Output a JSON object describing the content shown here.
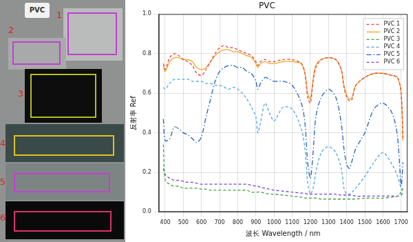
{
  "chart_data": {
    "type": "line",
    "title": "PVC",
    "x_label": "波长 Wavelength / nm",
    "y_label": "反射率 Ref",
    "x": [
      390,
      400,
      425,
      450,
      475,
      500,
      525,
      550,
      575,
      600,
      625,
      650,
      675,
      700,
      725,
      750,
      775,
      800,
      825,
      850,
      875,
      900,
      910,
      925,
      950,
      975,
      1000,
      1050,
      1100,
      1150,
      1170,
      1185,
      1200,
      1215,
      1230,
      1260,
      1300,
      1340,
      1370,
      1385,
      1400,
      1415,
      1430,
      1450,
      1500,
      1550,
      1600,
      1650,
      1680,
      1700,
      1710
    ],
    "series": [
      {
        "name": "PVC 1",
        "color": "#e8413c",
        "line_style": "dashed",
        "values": [
          0.75,
          0.72,
          0.78,
          0.8,
          0.79,
          0.77,
          0.76,
          0.74,
          0.7,
          0.69,
          0.72,
          0.76,
          0.8,
          0.83,
          0.84,
          0.83,
          0.83,
          0.82,
          0.81,
          0.8,
          0.79,
          0.76,
          0.74,
          0.76,
          0.77,
          0.76,
          0.76,
          0.77,
          0.77,
          0.75,
          0.7,
          0.58,
          0.55,
          0.66,
          0.73,
          0.77,
          0.78,
          0.77,
          0.72,
          0.63,
          0.58,
          0.56,
          0.57,
          0.64,
          0.68,
          0.7,
          0.7,
          0.69,
          0.68,
          0.6,
          0.37
        ]
      },
      {
        "name": "PVC 2",
        "color": "#f5a623",
        "line_style": "solid",
        "values": [
          0.74,
          0.71,
          0.76,
          0.78,
          0.78,
          0.77,
          0.77,
          0.76,
          0.73,
          0.72,
          0.73,
          0.76,
          0.79,
          0.81,
          0.82,
          0.82,
          0.81,
          0.81,
          0.8,
          0.79,
          0.78,
          0.75,
          0.73,
          0.75,
          0.76,
          0.75,
          0.75,
          0.76,
          0.76,
          0.75,
          0.7,
          0.6,
          0.57,
          0.67,
          0.74,
          0.77,
          0.78,
          0.77,
          0.72,
          0.64,
          0.59,
          0.57,
          0.58,
          0.64,
          0.68,
          0.7,
          0.7,
          0.69,
          0.68,
          0.6,
          0.36
        ]
      },
      {
        "name": "PVC 3",
        "color": "#3ca03c",
        "line_style": "dashed",
        "values": [
          0.34,
          0.16,
          0.14,
          0.13,
          0.13,
          0.12,
          0.12,
          0.12,
          0.12,
          0.115,
          0.115,
          0.11,
          0.11,
          0.11,
          0.11,
          0.11,
          0.11,
          0.11,
          0.11,
          0.11,
          0.1,
          0.1,
          0.1,
          0.1,
          0.095,
          0.09,
          0.09,
          0.085,
          0.08,
          0.075,
          0.07,
          0.07,
          0.07,
          0.07,
          0.07,
          0.065,
          0.065,
          0.065,
          0.065,
          0.065,
          0.065,
          0.065,
          0.065,
          0.065,
          0.07,
          0.07,
          0.07,
          0.075,
          0.08,
          0.1,
          0.12
        ]
      },
      {
        "name": "PVC 4",
        "color": "#4aa3e8",
        "line_style": "dashed",
        "values": [
          0.63,
          0.62,
          0.65,
          0.67,
          0.67,
          0.67,
          0.67,
          0.66,
          0.66,
          0.66,
          0.65,
          0.65,
          0.64,
          0.64,
          0.63,
          0.62,
          0.63,
          0.62,
          0.6,
          0.57,
          0.53,
          0.48,
          0.4,
          0.45,
          0.55,
          0.5,
          0.46,
          0.53,
          0.52,
          0.42,
          0.32,
          0.15,
          0.09,
          0.12,
          0.2,
          0.3,
          0.33,
          0.3,
          0.22,
          0.12,
          0.09,
          0.09,
          0.1,
          0.12,
          0.18,
          0.25,
          0.3,
          0.24,
          0.18,
          0.12,
          0.1
        ]
      },
      {
        "name": "PVC 5",
        "color": "#2060c0",
        "line_style": "dashdot",
        "values": [
          0.47,
          0.36,
          0.37,
          0.43,
          0.42,
          0.4,
          0.39,
          0.37,
          0.35,
          0.38,
          0.48,
          0.57,
          0.66,
          0.71,
          0.73,
          0.74,
          0.74,
          0.73,
          0.73,
          0.71,
          0.7,
          0.66,
          0.62,
          0.65,
          0.68,
          0.67,
          0.66,
          0.66,
          0.64,
          0.55,
          0.45,
          0.25,
          0.17,
          0.3,
          0.48,
          0.58,
          0.62,
          0.58,
          0.45,
          0.32,
          0.24,
          0.22,
          0.26,
          0.32,
          0.4,
          0.52,
          0.55,
          0.5,
          0.38,
          0.13,
          0.25
        ]
      },
      {
        "name": "PVC 6",
        "color": "#7b3fd6",
        "line_style": "dashed",
        "values": [
          0.22,
          0.19,
          0.17,
          0.16,
          0.16,
          0.155,
          0.15,
          0.15,
          0.145,
          0.14,
          0.14,
          0.14,
          0.14,
          0.14,
          0.14,
          0.14,
          0.14,
          0.14,
          0.14,
          0.14,
          0.135,
          0.13,
          0.13,
          0.125,
          0.12,
          0.115,
          0.11,
          0.105,
          0.1,
          0.095,
          0.095,
          0.09,
          0.09,
          0.09,
          0.09,
          0.09,
          0.09,
          0.09,
          0.085,
          0.085,
          0.085,
          0.085,
          0.085,
          0.08,
          0.08,
          0.08,
          0.08,
          0.08,
          0.08,
          0.085,
          0.1
        ]
      }
    ],
    "xlim": [
      365,
      1735
    ],
    "xticks": [
      400,
      500,
      600,
      700,
      800,
      900,
      1000,
      1100,
      1200,
      1300,
      1400,
      1500,
      1600,
      1700
    ],
    "ylim": [
      0,
      1
    ],
    "yticks": [
      {
        "value": 0,
        "label": "0.0"
      },
      0.2,
      0.4,
      0.6,
      0.8,
      {
        "value": 1,
        "label": "1.0"
      }
    ],
    "grid": true,
    "legend": "upper right"
  },
  "image_panel": {
    "title": "PVC",
    "labels": [
      "1",
      "2",
      "3",
      "4",
      "5",
      "6"
    ]
  }
}
